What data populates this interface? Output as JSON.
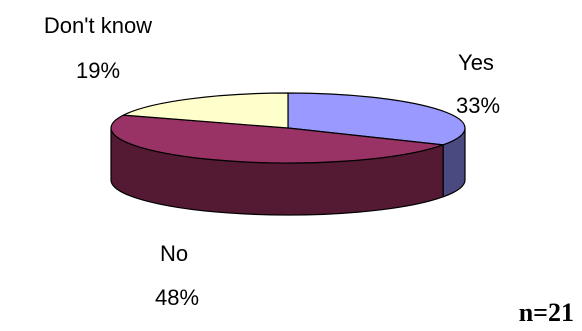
{
  "chart_data": {
    "type": "pie",
    "style": "3d",
    "title": "",
    "slices": [
      {
        "label": "Yes",
        "value": 33,
        "value_label": "33%",
        "top_color": "#9999ff",
        "side_color": "#4a4a80"
      },
      {
        "label": "No",
        "value": 48,
        "value_label": "48%",
        "top_color": "#993366",
        "side_color": "#551a33"
      },
      {
        "label": "Don't know",
        "value": 19,
        "value_label": "19%",
        "top_color": "#ffffcc",
        "side_color": "#808066"
      }
    ],
    "annotation": "n=21"
  }
}
